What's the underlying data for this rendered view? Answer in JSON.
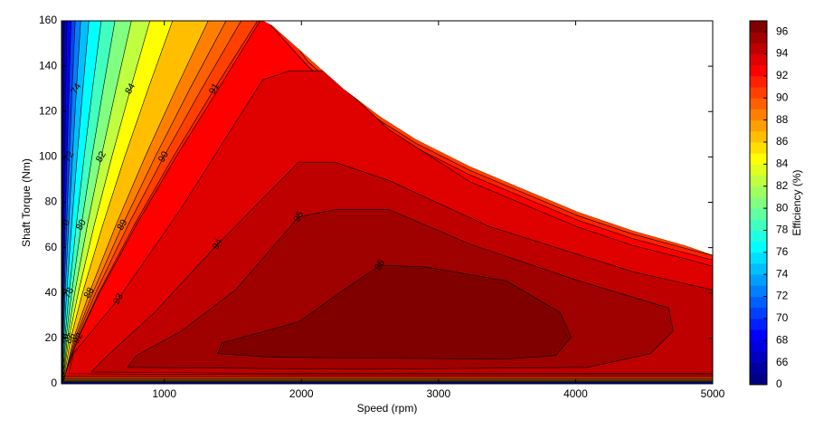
{
  "chart_data": {
    "type": "contour",
    "x_label": "Speed  (rpm)",
    "y_label": "Shaft Torque  (Nm)",
    "xlim": [
      250,
      5000
    ],
    "ylim": [
      0,
      160
    ],
    "xticks": [
      1000,
      2000,
      3000,
      4000,
      5000
    ],
    "yticks": [
      0,
      20,
      40,
      60,
      80,
      100,
      120,
      140,
      160
    ],
    "envelope": {
      "x": [
        250,
        1718,
        1784,
        2047,
        2310,
        2573,
        2836,
        3231,
        3626,
        4021,
        4416,
        4810,
        5000
      ],
      "y": [
        160,
        160,
        158,
        143.9,
        129.8,
        117.8,
        107.7,
        95.7,
        85.6,
        75.6,
        67.5,
        60.7,
        56.7
      ]
    },
    "contours": [
      {
        "level": 66,
        "x": [
          250,
          252,
          254,
          257,
          261,
          266,
          270,
          270,
          5100,
          5100
        ],
        "y": [
          1,
          20,
          40,
          70,
          100,
          130,
          160,
          170,
          170,
          1
        ]
      },
      {
        "level": 68,
        "x": [
          251,
          253,
          258,
          265,
          273,
          281,
          290,
          290,
          5100,
          5100
        ],
        "y": [
          1,
          20,
          40,
          70,
          100,
          130,
          160,
          170,
          170,
          1
        ]
      },
      {
        "level": 70,
        "x": [
          251,
          256,
          263,
          276,
          290,
          305,
          320,
          320,
          5100,
          5100
        ],
        "y": [
          1,
          20,
          40,
          70,
          100,
          130,
          160,
          170,
          170,
          1
        ]
      },
      {
        "level": 72,
        "x": [
          252,
          258,
          269,
          287,
          307,
          328,
          350,
          350,
          5100,
          5100
        ],
        "y": [
          1,
          20,
          40,
          70,
          100,
          130,
          160,
          170,
          170,
          1
        ]
      },
      {
        "level": 74,
        "x": [
          252,
          262,
          276,
          302,
          330,
          359,
          390,
          390,
          5100,
          5100
        ],
        "y": [
          1,
          20,
          40,
          70,
          100,
          130,
          160,
          170,
          170,
          1
        ]
      },
      {
        "level": 76,
        "x": [
          253,
          267,
          288,
          324,
          364,
          406,
          450,
          450,
          5100,
          5100
        ],
        "y": [
          1,
          20,
          40,
          70,
          100,
          130,
          160,
          170,
          170,
          1
        ]
      },
      {
        "level": 78,
        "x": [
          255,
          274,
          305,
          358,
          415,
          476,
          540,
          540,
          5100,
          5100
        ],
        "y": [
          1,
          20,
          40,
          70,
          100,
          130,
          160,
          170,
          170,
          1
        ]
      },
      {
        "level": 80,
        "x": [
          256,
          282,
          324,
          395,
          472,
          554,
          640,
          640,
          5100,
          5100
        ],
        "y": [
          1,
          20,
          40,
          70,
          100,
          130,
          160,
          170,
          170,
          1
        ]
      },
      {
        "level": 82,
        "x": [
          258,
          292,
          346,
          439,
          540,
          648,
          760,
          760,
          5100,
          5100
        ],
        "y": [
          1,
          20,
          40,
          70,
          100,
          130,
          160,
          170,
          170,
          1
        ]
      },
      {
        "level": 84,
        "x": [
          260,
          303,
          372,
          489,
          617,
          753,
          895,
          895,
          5100,
          5100
        ],
        "y": [
          1,
          20,
          40,
          70,
          100,
          130,
          160,
          170,
          170,
          1
        ]
      },
      {
        "level": 86,
        "x": [
          263,
          317,
          403,
          551,
          711,
          882,
          1060,
          1060,
          5100,
          5100
        ],
        "y": [
          1.2,
          20,
          40,
          70,
          100,
          130,
          160,
          170,
          170,
          1.2
        ]
      },
      {
        "level": 88,
        "x": [
          267,
          338,
          452,
          647,
          859,
          1085,
          1320,
          1320,
          5100,
          5100
        ],
        "y": [
          1.5,
          20,
          40,
          70,
          100,
          130,
          160,
          170,
          170,
          1.5
        ]
      },
      {
        "level": 89,
        "x": [
          269,
          349,
          477,
          695,
          933,
          1186,
          1450,
          1450,
          5100,
          5100
        ],
        "y": [
          1.8,
          20,
          40,
          70,
          100,
          130,
          160,
          170,
          170,
          1.8
        ]
      },
      {
        "level": 90,
        "x": [
          270,
          358,
          498,
          736,
          995,
          1272,
          1560,
          1560,
          5100,
          5100
        ],
        "y": [
          2.2,
          20,
          40,
          70,
          100,
          130,
          160,
          170,
          170,
          2.2
        ]
      },
      {
        "level": 91,
        "x": [
          272,
          368,
          520,
          781,
          1064,
          1365,
          1680,
          1718,
          2047,
          2310,
          2573,
          2836,
          3231,
          3626,
          4021,
          4416,
          4810,
          5100,
          5100
        ],
        "y": [
          2.8,
          20,
          40,
          70,
          100,
          130,
          160,
          170,
          142,
          128,
          116,
          106,
          94,
          84,
          74,
          66,
          59.5,
          55,
          2.8
        ]
      },
      {
        "level": 92,
        "x": [
          273,
          371,
          527,
          795,
          1085,
          1395,
          1718,
          2047,
          2310,
          2573,
          2836,
          3231,
          3626,
          4021,
          4416,
          4810,
          5100,
          5100
        ],
        "y": [
          3.5,
          20,
          40,
          70,
          100,
          130,
          162,
          140,
          126,
          114,
          104,
          92,
          82,
          72,
          64,
          57.5,
          53,
          3.5
        ]
      },
      {
        "level": 93,
        "x": [
          303,
          336,
          665,
          1126,
          1718,
          1915,
          2178,
          2639,
          3231,
          3626,
          4021,
          4416,
          4810,
          5100,
          5100,
          2000
        ],
        "y": [
          4.4,
          13.3,
          37.4,
          77.6,
          134,
          138,
          138,
          112,
          89,
          79,
          69,
          61,
          55,
          50,
          4,
          4
        ]
      },
      {
        "level": 94,
        "x": [
          468,
          566,
          928,
          1389,
          1981,
          2244,
          2639,
          3363,
          4416,
          5100,
          5100,
          2000
        ],
        "y": [
          5.2,
          11.3,
          31.4,
          61.5,
          97.7,
          97.7,
          89.6,
          69.5,
          49.4,
          40,
          4.5,
          4.5
        ]
      },
      {
        "level": 95,
        "x": [
          731,
          797,
          1126,
          1520,
          1981,
          2244,
          2639,
          3231,
          4021,
          4679,
          4712,
          4547,
          4087,
          2442
        ],
        "y": [
          7.2,
          12.5,
          23.3,
          41.4,
          73.6,
          76.8,
          76.8,
          61.5,
          45.4,
          33.4,
          23.3,
          13.3,
          7.2,
          6.4
        ]
      },
      {
        "level": 96,
        "x": [
          1389,
          1422,
          1619,
          1981,
          2310,
          2573,
          2902,
          3494,
          3889,
          3968,
          3856,
          3494,
          1784
        ],
        "y": [
          13.3,
          18.1,
          21.3,
          27.3,
          41.4,
          52.3,
          51.5,
          45.4,
          31.4,
          20.5,
          12.5,
          10.9,
          11.7
        ]
      }
    ],
    "colorbar": {
      "label": "Efficiency (%)",
      "levels": [
        0,
        65,
        66,
        67,
        68,
        69,
        70,
        71,
        72,
        73,
        74,
        75,
        76,
        77,
        78,
        79,
        80,
        81,
        82,
        83,
        84,
        85,
        86,
        87,
        88,
        89,
        90,
        91,
        92,
        93,
        94,
        95,
        96,
        97
      ],
      "ticks": [
        0,
        66,
        68,
        70,
        72,
        74,
        76,
        78,
        80,
        82,
        84,
        86,
        88,
        90,
        92,
        94,
        96
      ]
    }
  }
}
